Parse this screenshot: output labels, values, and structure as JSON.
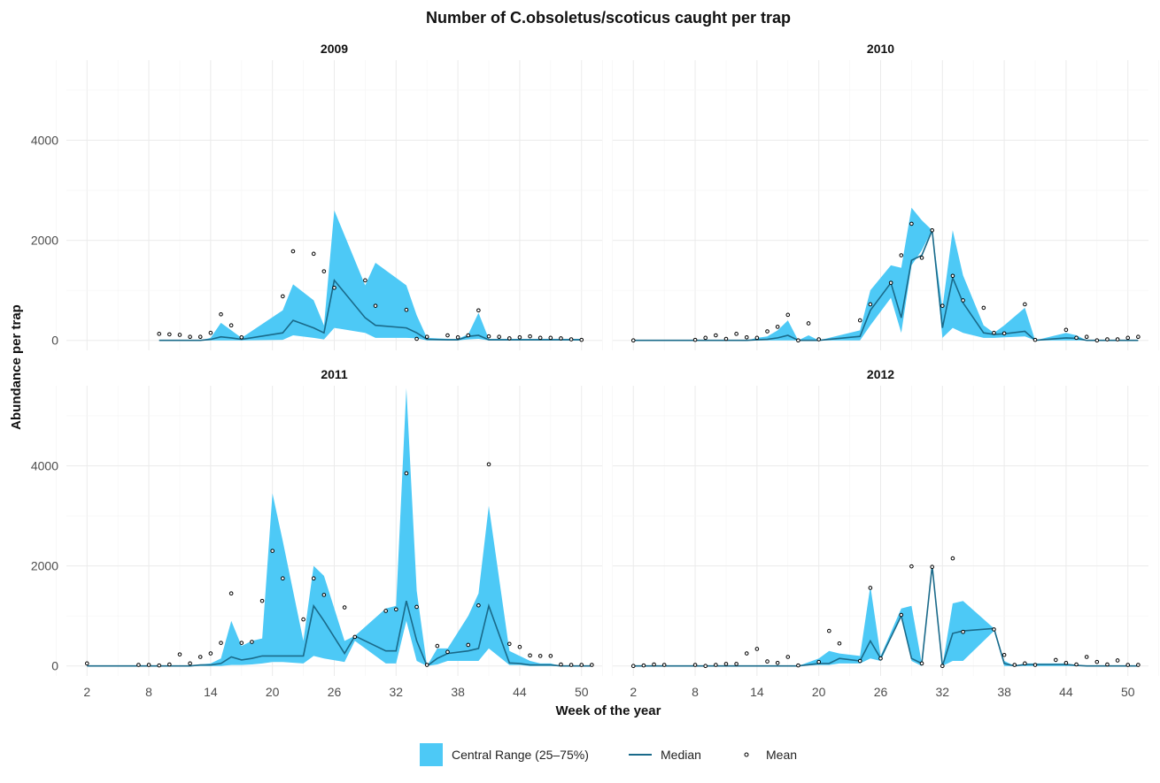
{
  "chart_data": {
    "type": "area",
    "title": "Number of C.obsoletus/scoticus caught per trap",
    "xlabel": "Week of the year",
    "ylabel": "Abundance per trap",
    "xlim": [
      0,
      52
    ],
    "ylim": [
      -200,
      5600
    ],
    "x_ticks": [
      2,
      8,
      14,
      20,
      26,
      32,
      38,
      44,
      50
    ],
    "y_ticks": [
      0,
      2000,
      4000
    ],
    "grid": true,
    "legend_position": "bottom",
    "colors": {
      "range": "#4dc9f6",
      "median": "#1a6a8a",
      "mean": "#000000"
    },
    "legend": [
      {
        "key": "range",
        "label": "Central Range (25–75%)"
      },
      {
        "key": "median",
        "label": "Median"
      },
      {
        "key": "mean",
        "label": "Mean"
      }
    ],
    "panels": [
      {
        "year": "2009",
        "week": [
          9,
          10,
          11,
          12,
          13,
          14,
          15,
          16,
          17,
          21,
          22,
          24,
          25,
          26,
          29,
          30,
          33,
          34,
          35,
          37,
          38,
          39,
          40,
          41,
          42,
          43,
          44,
          45,
          46,
          47,
          48,
          49,
          50
        ],
        "median": [
          0,
          0,
          0,
          0,
          0,
          20,
          70,
          50,
          20,
          150,
          400,
          250,
          150,
          1200,
          450,
          300,
          250,
          150,
          20,
          10,
          10,
          80,
          100,
          10,
          10,
          10,
          10,
          10,
          10,
          10,
          10,
          10,
          10
        ],
        "q25": [
          0,
          0,
          0,
          0,
          0,
          0,
          0,
          0,
          0,
          10,
          100,
          50,
          20,
          250,
          150,
          50,
          50,
          40,
          0,
          0,
          0,
          20,
          30,
          0,
          0,
          0,
          0,
          0,
          0,
          0,
          0,
          0,
          0
        ],
        "q75": [
          0,
          0,
          0,
          0,
          0,
          50,
          350,
          200,
          50,
          600,
          1120,
          800,
          300,
          2600,
          1100,
          1550,
          1100,
          500,
          50,
          30,
          30,
          120,
          550,
          30,
          30,
          30,
          30,
          30,
          30,
          30,
          30,
          30,
          30
        ],
        "mean": [
          130,
          120,
          110,
          70,
          70,
          150,
          520,
          300,
          60,
          880,
          1780,
          1730,
          1380,
          1050,
          1200,
          690,
          610,
          30,
          70,
          100,
          60,
          100,
          600,
          80,
          70,
          40,
          60,
          80,
          50,
          50,
          40,
          20,
          10
        ]
      },
      {
        "year": "2010",
        "week": [
          2,
          8,
          9,
          10,
          11,
          12,
          13,
          14,
          15,
          16,
          17,
          18,
          19,
          20,
          24,
          25,
          27,
          28,
          29,
          30,
          31,
          32,
          33,
          34,
          36,
          37,
          38,
          40,
          41,
          44,
          45,
          46,
          47,
          48,
          49,
          50,
          51
        ],
        "median": [
          0,
          0,
          0,
          0,
          0,
          0,
          0,
          10,
          20,
          50,
          100,
          0,
          0,
          0,
          80,
          600,
          1150,
          450,
          1600,
          1700,
          2200,
          250,
          1250,
          750,
          150,
          120,
          130,
          180,
          0,
          50,
          40,
          0,
          0,
          0,
          0,
          0,
          0
        ],
        "q25": [
          0,
          0,
          0,
          0,
          0,
          0,
          0,
          0,
          0,
          0,
          0,
          0,
          0,
          0,
          0,
          300,
          850,
          150,
          1500,
          1800,
          2200,
          50,
          250,
          150,
          50,
          50,
          60,
          80,
          0,
          0,
          0,
          0,
          0,
          0,
          0,
          0,
          0
        ],
        "q75": [
          0,
          0,
          0,
          0,
          0,
          0,
          0,
          50,
          80,
          200,
          400,
          0,
          100,
          0,
          200,
          1000,
          1500,
          1450,
          2650,
          2400,
          2200,
          650,
          2200,
          1300,
          300,
          150,
          300,
          650,
          0,
          150,
          100,
          0,
          0,
          0,
          0,
          0,
          0
        ],
        "mean": [
          0,
          10,
          50,
          100,
          30,
          130,
          60,
          50,
          180,
          270,
          510,
          0,
          340,
          20,
          400,
          720,
          1150,
          1700,
          2330,
          1650,
          2200,
          690,
          1290,
          800,
          650,
          150,
          140,
          720,
          10,
          210,
          50,
          70,
          0,
          20,
          20,
          50,
          70
        ]
      },
      {
        "year": "2011",
        "week": [
          2,
          7,
          8,
          9,
          10,
          11,
          12,
          13,
          14,
          15,
          16,
          17,
          18,
          19,
          20,
          21,
          23,
          24,
          25,
          27,
          28,
          31,
          32,
          33,
          34,
          35,
          36,
          37,
          39,
          40,
          41,
          43,
          44,
          45,
          46,
          47,
          48,
          49,
          50,
          51
        ],
        "median": [
          0,
          0,
          0,
          0,
          0,
          0,
          0,
          20,
          20,
          50,
          180,
          120,
          150,
          200,
          200,
          200,
          200,
          1200,
          900,
          250,
          600,
          300,
          300,
          1300,
          500,
          0,
          150,
          250,
          300,
          350,
          1200,
          60,
          50,
          20,
          20,
          20,
          0,
          0,
          0,
          0
        ],
        "q25": [
          0,
          0,
          0,
          0,
          0,
          0,
          0,
          0,
          0,
          0,
          20,
          20,
          30,
          50,
          80,
          80,
          50,
          200,
          150,
          80,
          500,
          50,
          50,
          900,
          100,
          0,
          30,
          100,
          100,
          100,
          350,
          20,
          20,
          0,
          0,
          0,
          0,
          0,
          0,
          0
        ],
        "q75": [
          0,
          0,
          0,
          0,
          0,
          0,
          0,
          30,
          50,
          150,
          900,
          400,
          500,
          550,
          3450,
          2500,
          500,
          2000,
          1800,
          500,
          600,
          1150,
          1200,
          5550,
          1500,
          0,
          350,
          350,
          1000,
          1450,
          3200,
          300,
          200,
          100,
          50,
          50,
          0,
          0,
          0,
          0
        ],
        "mean": [
          50,
          20,
          20,
          10,
          30,
          230,
          50,
          180,
          250,
          460,
          1450,
          460,
          480,
          1300,
          2300,
          1750,
          930,
          1750,
          1420,
          1170,
          580,
          1100,
          1130,
          3850,
          1180,
          20,
          400,
          280,
          420,
          1210,
          4030,
          440,
          380,
          210,
          200,
          200,
          30,
          20,
          20,
          20
        ]
      },
      {
        "year": "2012",
        "week": [
          2,
          3,
          4,
          5,
          8,
          9,
          10,
          11,
          12,
          13,
          14,
          15,
          16,
          17,
          18,
          20,
          21,
          22,
          24,
          25,
          26,
          28,
          29,
          30,
          31,
          32,
          33,
          34,
          37,
          38,
          39,
          40,
          41,
          43,
          44,
          45,
          46,
          47,
          48,
          49,
          50,
          51
        ],
        "median": [
          0,
          0,
          0,
          0,
          0,
          0,
          0,
          0,
          0,
          0,
          0,
          0,
          0,
          0,
          0,
          50,
          50,
          150,
          100,
          500,
          150,
          1000,
          150,
          50,
          2000,
          0,
          650,
          700,
          750,
          50,
          0,
          30,
          30,
          30,
          30,
          10,
          0,
          0,
          0,
          0,
          0,
          0
        ],
        "q25": [
          0,
          0,
          0,
          0,
          0,
          0,
          0,
          0,
          0,
          0,
          0,
          0,
          0,
          0,
          0,
          20,
          20,
          50,
          50,
          150,
          100,
          1000,
          100,
          0,
          2000,
          0,
          100,
          100,
          700,
          0,
          0,
          0,
          0,
          0,
          0,
          0,
          0,
          0,
          0,
          0,
          0,
          0
        ],
        "q75": [
          0,
          0,
          0,
          0,
          0,
          0,
          0,
          0,
          0,
          0,
          0,
          0,
          0,
          0,
          0,
          150,
          300,
          250,
          200,
          1600,
          200,
          1150,
          1200,
          50,
          2000,
          0,
          1250,
          1300,
          750,
          100,
          0,
          50,
          50,
          50,
          50,
          20,
          0,
          0,
          0,
          0,
          0,
          0
        ],
        "mean": [
          0,
          10,
          30,
          20,
          20,
          0,
          20,
          40,
          40,
          250,
          340,
          90,
          60,
          180,
          10,
          80,
          700,
          450,
          100,
          1560,
          150,
          1020,
          1990,
          50,
          1980,
          0,
          2150,
          680,
          730,
          220,
          20,
          50,
          20,
          120,
          60,
          30,
          180,
          80,
          30,
          110,
          20,
          20
        ]
      }
    ]
  }
}
